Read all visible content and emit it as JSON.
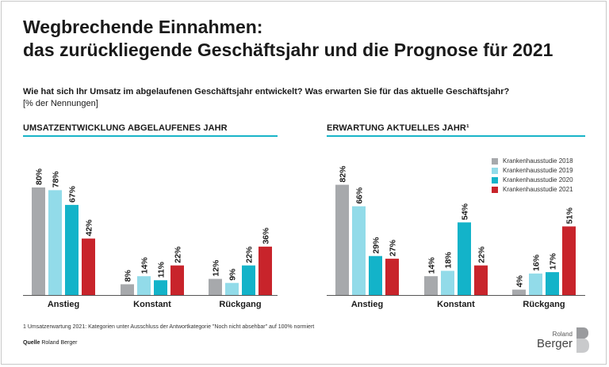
{
  "title_line1": "Wegbrechende Einnahmen:",
  "title_line2": "das zurückliegende Geschäftsjahr und die Prognose für 2021",
  "question": "Wie hat sich Ihr Umsatz im abgelaufenen Geschäftsjahr entwickelt? Was erwarten Sie für das aktuelle Geschäftsjahr?",
  "unit": "[% der Nennungen]",
  "footnote": "1 Umsatzerwartung 2021: Kategorien unter Ausschluss der Antwortkategorie \"Noch nicht absehbar\" auf 100% normiert",
  "source_label": "Quelle",
  "source_text": "Roland Berger",
  "logo_small": "Roland",
  "logo_big": "Berger",
  "colors": [
    "#a7a9ac",
    "#92dbe9",
    "#13b3c9",
    "#c8242b"
  ],
  "chart_data": [
    {
      "type": "bar",
      "title": "UMSATZENTWICKLUNG ABGELAUFENES JAHR",
      "categories": [
        "Anstieg",
        "Konstant",
        "Rückgang"
      ],
      "series": [
        {
          "name": "Krankenhausstudie 2018",
          "values": [
            80,
            8,
            12
          ]
        },
        {
          "name": "Krankenhausstudie 2019",
          "values": [
            78,
            14,
            9
          ]
        },
        {
          "name": "Krankenhausstudie 2020",
          "values": [
            67,
            11,
            22
          ]
        },
        {
          "name": "Krankenhausstudie 2021",
          "values": [
            42,
            22,
            36
          ]
        }
      ],
      "value_suffix": "%",
      "ylim": [
        0,
        100
      ],
      "grid": false
    },
    {
      "type": "bar",
      "title": "ERWARTUNG AKTUELLES JAHR¹",
      "categories": [
        "Anstieg",
        "Konstant",
        "Rückgang"
      ],
      "series": [
        {
          "name": "Krankenhausstudie 2018",
          "values": [
            82,
            14,
            4
          ]
        },
        {
          "name": "Krankenhausstudie 2019",
          "values": [
            66,
            18,
            16
          ]
        },
        {
          "name": "Krankenhausstudie 2020",
          "values": [
            29,
            54,
            17
          ]
        },
        {
          "name": "Krankenhausstudie 2021",
          "values": [
            27,
            22,
            51
          ]
        }
      ],
      "value_suffix": "%",
      "ylim": [
        0,
        100
      ],
      "grid": false,
      "legend": "top-right"
    }
  ]
}
